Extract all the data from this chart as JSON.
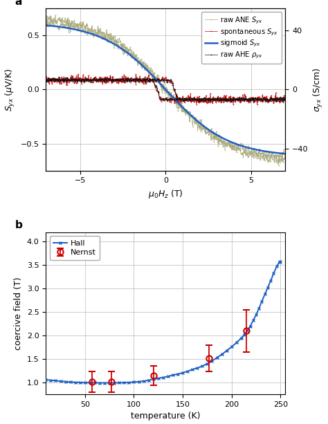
{
  "panel_a": {
    "xlim": [
      -7,
      7
    ],
    "ylim_left": [
      -0.75,
      0.75
    ],
    "ylim_right": [
      -55,
      55
    ],
    "xlabel": "$\\mu_0H_z$ (T)",
    "ylabel_left": "$S_{yx}$ ($\\mu$V/K)",
    "ylabel_right": "$\\sigma_{yx}$ (S/cm)",
    "xticks": [
      -5,
      0,
      5
    ],
    "yticks_left": [
      -0.5,
      0.0,
      0.5
    ],
    "yticks_right": [
      -40,
      0,
      40
    ],
    "raw_ANE_color": "#a8a87a",
    "spontaneous_color": "#cc0000",
    "sigmoid_color": "#2060c0",
    "raw_AHE_color": "#111111",
    "legend_labels": [
      "raw ANE $S_{yx}$",
      "spontaneous $S_{yx}$",
      "sigmoid $S_{yx}$",
      "raw AHE $\\rho_{yx}$"
    ]
  },
  "panel_b": {
    "hall_T": [
      10,
      15,
      20,
      25,
      30,
      35,
      40,
      45,
      50,
      55,
      60,
      65,
      70,
      75,
      80,
      85,
      90,
      95,
      100,
      105,
      110,
      115,
      120,
      125,
      130,
      135,
      140,
      145,
      150,
      155,
      160,
      165,
      170,
      175,
      180,
      185,
      190,
      195,
      200,
      205,
      210,
      213,
      216,
      219,
      222,
      225,
      228,
      231,
      234,
      237,
      240,
      243,
      246,
      249,
      250
    ],
    "hall_Hc": [
      1.06,
      1.05,
      1.04,
      1.03,
      1.02,
      1.01,
      1.005,
      1.0,
      0.998,
      0.996,
      0.995,
      0.994,
      0.993,
      0.993,
      0.994,
      0.996,
      0.998,
      1.0,
      1.01,
      1.02,
      1.03,
      1.05,
      1.07,
      1.09,
      1.11,
      1.13,
      1.16,
      1.18,
      1.21,
      1.24,
      1.28,
      1.31,
      1.35,
      1.4,
      1.46,
      1.53,
      1.6,
      1.68,
      1.76,
      1.85,
      1.95,
      2.02,
      2.1,
      2.2,
      2.32,
      2.44,
      2.58,
      2.73,
      2.88,
      3.02,
      3.17,
      3.32,
      3.47,
      3.57,
      3.58
    ],
    "nernst_T": [
      57,
      77,
      120,
      177,
      215
    ],
    "nernst_Hc": [
      1.02,
      1.02,
      1.15,
      1.52,
      2.1
    ],
    "nernst_err": [
      0.22,
      0.22,
      0.2,
      0.28,
      0.45
    ],
    "xlim": [
      10,
      255
    ],
    "ylim": [
      0.75,
      4.2
    ],
    "xlabel": "temperature (K)",
    "ylabel": "coercive field (T)",
    "xticks": [
      50,
      100,
      150,
      200,
      250
    ],
    "yticks": [
      1.0,
      1.5,
      2.0,
      2.5,
      3.0,
      3.5,
      4.0
    ],
    "hall_color": "#2060c0",
    "nernst_color": "#cc0000"
  }
}
